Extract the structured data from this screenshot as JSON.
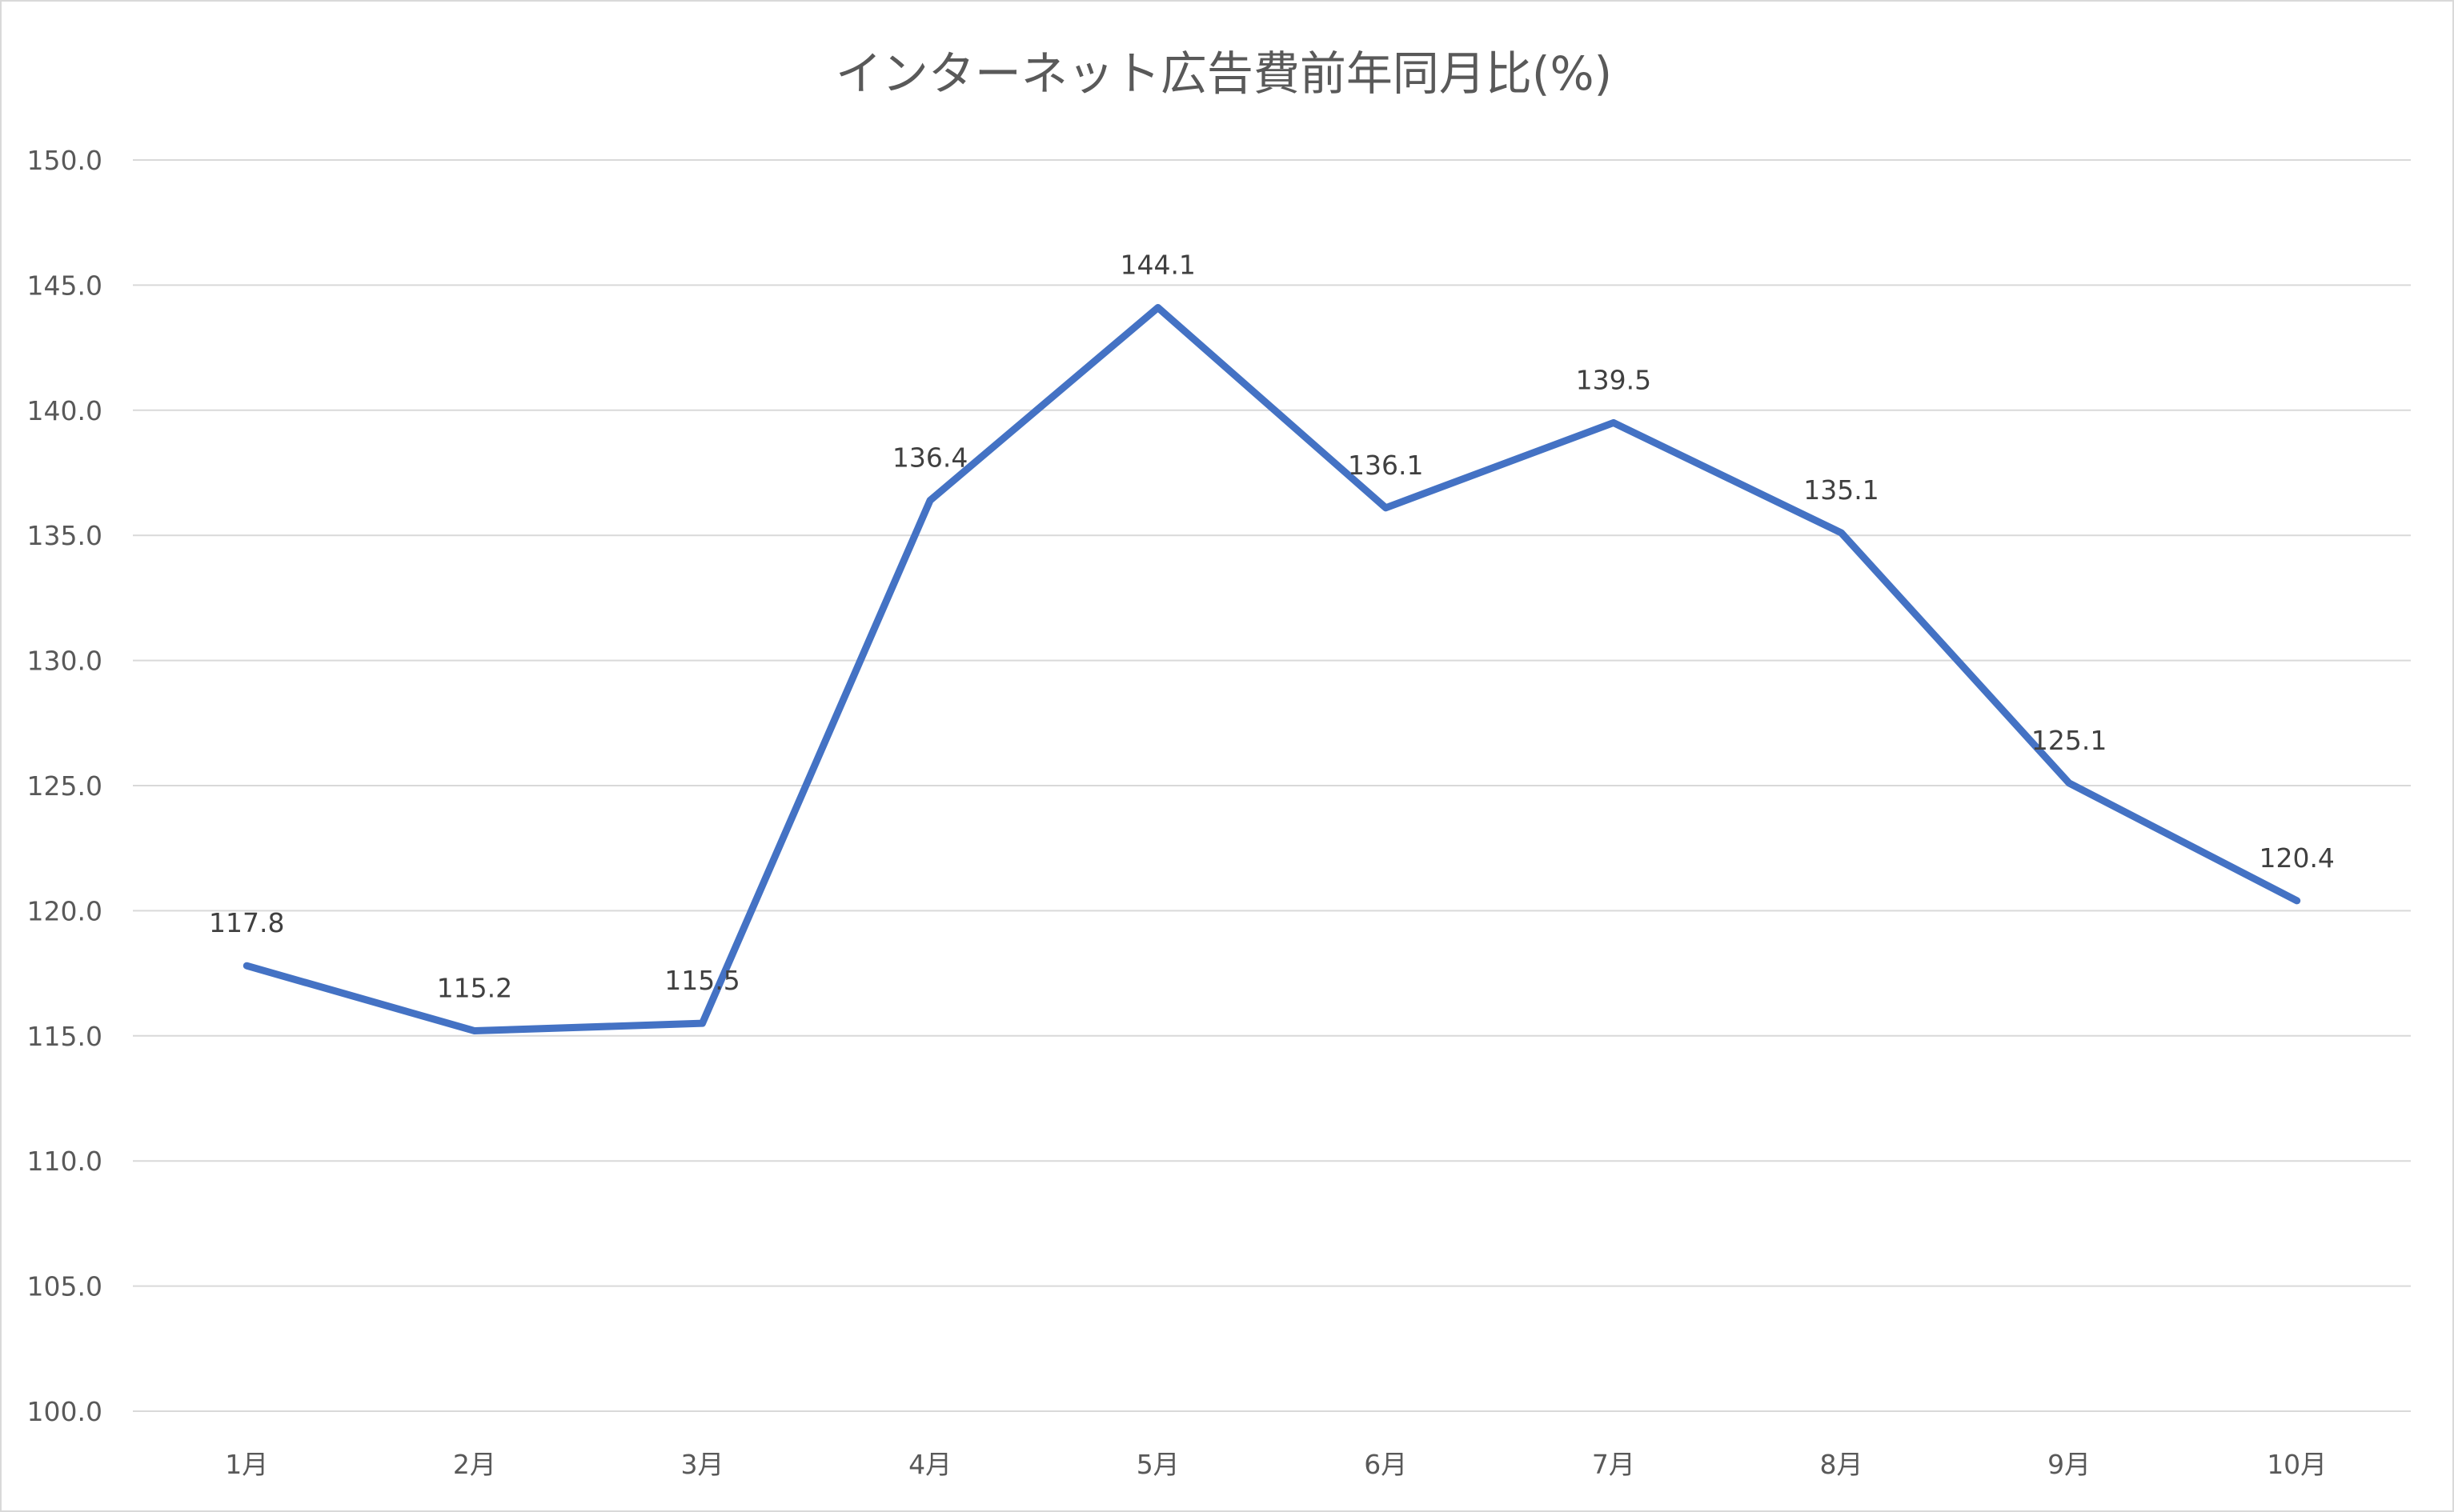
{
  "chart_data": {
    "type": "line",
    "title": "インターネット広告費前年同月比(%)",
    "xlabel": "",
    "ylabel": "",
    "categories": [
      "1月",
      "2月",
      "3月",
      "4月",
      "5月",
      "6月",
      "7月",
      "8月",
      "9月",
      "10月"
    ],
    "series": [
      {
        "values": [
          117.8,
          115.2,
          115.5,
          136.4,
          144.1,
          136.1,
          139.5,
          135.1,
          125.1,
          120.4
        ],
        "data_labels": [
          "117.8",
          "115.2",
          "115.5",
          "136.4",
          "144.1",
          "136.1",
          "139.5",
          "135.1",
          "125.1",
          "120.4"
        ],
        "color": "#4472c4"
      }
    ],
    "ylim": [
      100,
      150
    ],
    "y_ticks": [
      "100.0",
      "105.0",
      "110.0",
      "115.0",
      "120.0",
      "125.0",
      "130.0",
      "135.0",
      "140.0",
      "145.0",
      "150.0"
    ],
    "grid": true,
    "legend": "none"
  }
}
